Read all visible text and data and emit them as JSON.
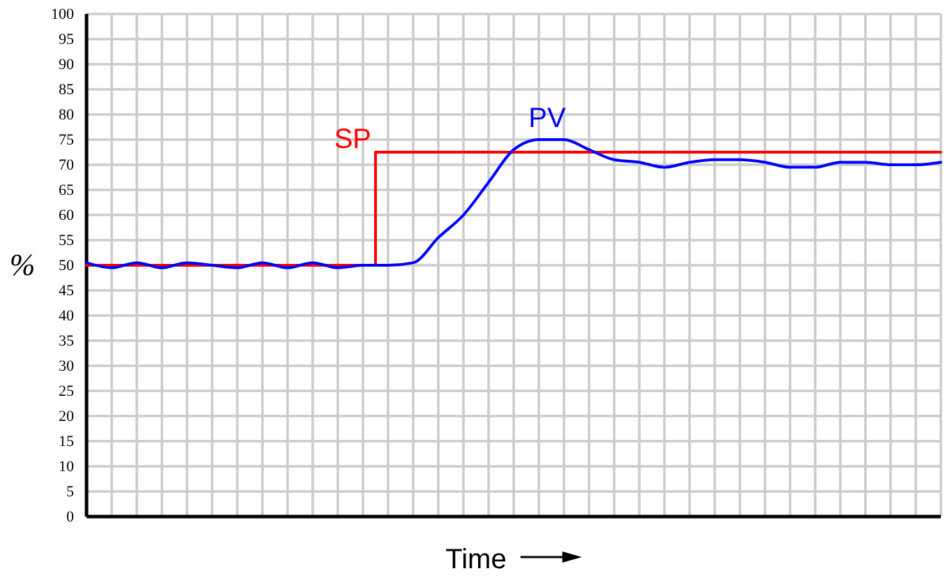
{
  "chart_data": {
    "type": "line",
    "xlabel": "Time",
    "ylabel": "%",
    "categories": [
      null,
      null,
      null,
      null,
      null,
      null,
      null,
      null,
      null,
      null,
      null,
      null,
      null,
      null,
      null,
      null,
      null,
      null,
      null,
      null,
      null,
      null,
      null,
      null,
      null,
      null,
      null,
      null,
      null,
      null,
      null,
      null,
      null,
      null,
      null
    ],
    "ylim": [
      0,
      100
    ],
    "yticks": [
      0,
      5,
      10,
      15,
      20,
      25,
      30,
      35,
      40,
      45,
      50,
      55,
      60,
      65,
      70,
      75,
      80,
      85,
      90,
      95,
      100
    ],
    "grid": true,
    "tick_labels": "y",
    "series": [
      {
        "name": "SP",
        "type": "step",
        "color": "#ff0000",
        "values": [
          50,
          50,
          50,
          50,
          50,
          50,
          50,
          50,
          50,
          50,
          50,
          50,
          72.5,
          72.5,
          72.5,
          72.5,
          72.5,
          72.5,
          72.5,
          72.5,
          72.5,
          72.5,
          72.5,
          72.5,
          72.5,
          72.5,
          72.5,
          72.5,
          72.5,
          72.5,
          72.5,
          72.5,
          72.5,
          72.5,
          72.5
        ]
      },
      {
        "name": "PV",
        "color": "#0000ff",
        "values": [
          50.5,
          49.5,
          50.5,
          49.5,
          50.5,
          50,
          49.5,
          50.5,
          49.5,
          50.5,
          49.5,
          50,
          50,
          50.5,
          55.5,
          60,
          66.5,
          73,
          75,
          75,
          73,
          71,
          70.5,
          69.5,
          70.5,
          71,
          71,
          70.5,
          69.5,
          69.5,
          70.5,
          70.5,
          70,
          70,
          70.5
        ]
      }
    ]
  }
}
